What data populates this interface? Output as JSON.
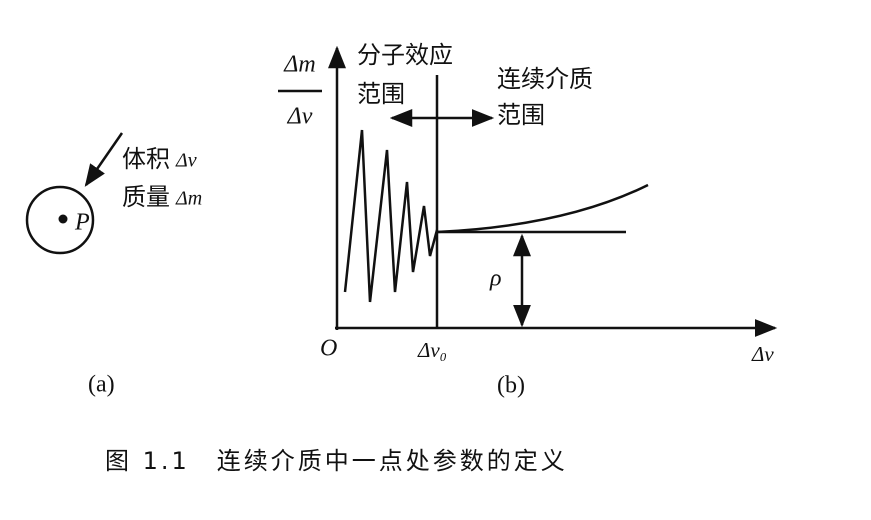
{
  "panel_a": {
    "volume_label": "体积",
    "volume_symbol": "Δv",
    "mass_label": "质量",
    "mass_symbol": "Δm",
    "point": "P",
    "caption": "(a)"
  },
  "panel_b": {
    "y_axis_numerator": "Δm",
    "y_axis_denominator": "Δv",
    "origin": "O",
    "x_mark": "Δv₀",
    "x_axis": "Δv",
    "density": "ρ",
    "left_region": [
      "分子效应",
      "范围"
    ],
    "right_region": [
      "连续介质",
      "范围"
    ],
    "caption": "(b)"
  },
  "figure_caption": "图 1.1　连续介质中一点处参数的定义"
}
